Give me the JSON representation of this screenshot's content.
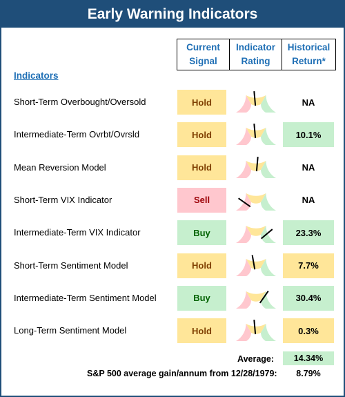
{
  "title": "Early Warning Indicators",
  "headers": {
    "current_signal": "Current\nSignal",
    "indicator_rating": "Indicator\nRating",
    "historical_return": "Historical\nReturn*"
  },
  "indicators_label": "Indicators",
  "colors": {
    "hold_bg": "#ffe699",
    "hold_text": "#7f3f00",
    "buy_bg": "#c6efce",
    "buy_text": "#006100",
    "sell_bg": "#ffc7ce",
    "sell_text": "#9c0006",
    "title_bg": "#1f4e79"
  },
  "rows": [
    {
      "label": "Short-Term Overbought/Oversold",
      "signal": "Hold",
      "return": "NA",
      "needle_angle": 95
    },
    {
      "label": "Intermediate-Term Ovrbt/Ovrsld",
      "signal": "Hold",
      "return": "10.1%",
      "needle_angle": 95
    },
    {
      "label": "Mean Reversion Model",
      "signal": "Hold",
      "return": "NA",
      "needle_angle": 85
    },
    {
      "label": "Short-Term VIX Indicator",
      "signal": "Sell",
      "return": "NA",
      "needle_angle": 145
    },
    {
      "label": "Intermediate-Term VIX Indicator",
      "signal": "Buy",
      "return": "23.3%",
      "needle_angle": 40
    },
    {
      "label": "Short-Term Sentiment Model",
      "signal": "Hold",
      "return": "7.7%",
      "needle_angle": 100
    },
    {
      "label": "Intermediate-Term Sentiment Model",
      "signal": "Buy",
      "return": "30.4%",
      "needle_angle": 55
    },
    {
      "label": "Long-Term Sentiment Model",
      "signal": "Hold",
      "return": "0.3%",
      "needle_angle": 95
    }
  ],
  "average_label": "Average:",
  "average_value": "14.34%",
  "sp500_label": "S&P 500 average gain/annum from 12/28/1979:",
  "sp500_value": "8.79%"
}
